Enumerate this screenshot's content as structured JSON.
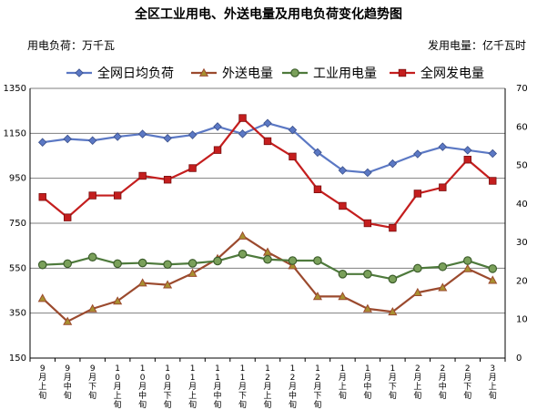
{
  "chart_data": {
    "type": "line",
    "title": "全区工业用电、外送电量及用电负荷变化趋势图",
    "left_unit_label": "用电负荷：万千瓦",
    "right_unit_label": "发用电量：亿千瓦时",
    "categories": [
      "9月上旬",
      "9月中旬",
      "9月下旬",
      "10月上旬",
      "10月中旬",
      "10月下旬",
      "11月上旬",
      "11月中旬",
      "11月下旬",
      "12月上旬",
      "12月中旬",
      "12月下旬",
      "1月上旬",
      "1月中旬",
      "1月下旬",
      "2月上旬",
      "2月中旬",
      "2月下旬",
      "3月上旬"
    ],
    "left_axis": {
      "min": 150,
      "max": 1350,
      "ticks": [
        150,
        350,
        550,
        750,
        950,
        1150,
        1350
      ]
    },
    "right_axis": {
      "min": 0,
      "max": 70,
      "ticks": [
        0,
        10,
        20,
        30,
        40,
        50,
        60,
        70
      ]
    },
    "grid": true,
    "legend_position": "top",
    "series": [
      {
        "name": "全网日均负荷",
        "axis": "left",
        "color": "#5b78c4",
        "marker": "diamond",
        "values": [
          1110,
          1125,
          1118,
          1135,
          1147,
          1128,
          1143,
          1180,
          1148,
          1195,
          1165,
          1065,
          985,
          975,
          1015,
          1058,
          1090,
          1075,
          1060
        ]
      },
      {
        "name": "外送电量",
        "axis": "right",
        "color": "#9b4a2e",
        "marker": "triangle",
        "values": [
          15.5,
          9.5,
          12.8,
          14.8,
          19.5,
          19.0,
          22.0,
          25.8,
          31.7,
          27.5,
          24.0,
          16.0,
          16.0,
          12.8,
          12.0,
          17.0,
          18.3,
          23.2,
          20.2
        ]
      },
      {
        "name": "工业用电量",
        "axis": "right",
        "color": "#4e7a3c",
        "marker": "circle",
        "values": [
          24.2,
          24.5,
          26.2,
          24.5,
          24.7,
          24.3,
          24.6,
          25.2,
          27.0,
          25.6,
          25.3,
          25.3,
          21.8,
          21.8,
          20.5,
          23.3,
          23.7,
          25.3,
          23.2
        ]
      },
      {
        "name": "全网发电量",
        "axis": "right",
        "color": "#c41e1e",
        "marker": "square",
        "values": [
          41.8,
          36.5,
          42.2,
          42.2,
          47.3,
          46.3,
          49.3,
          54.0,
          62.3,
          56.3,
          52.3,
          43.8,
          39.5,
          35.0,
          33.8,
          42.7,
          44.3,
          51.5,
          46.0
        ]
      }
    ]
  }
}
